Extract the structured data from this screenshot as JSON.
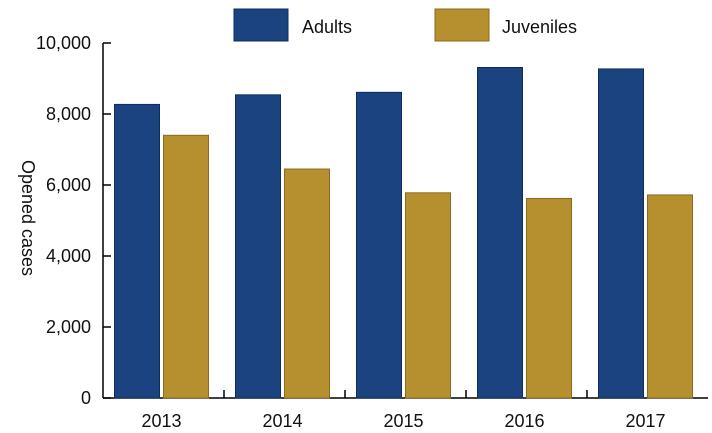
{
  "chart_data": {
    "type": "bar",
    "title": "",
    "xlabel": "",
    "ylabel": "Opened cases",
    "categories": [
      "2013",
      "2014",
      "2015",
      "2016",
      "2017"
    ],
    "series": [
      {
        "name": "Adults",
        "color": "#1b4380",
        "values": [
          8270,
          8540,
          8610,
          9310,
          9270
        ]
      },
      {
        "name": "Juveniles",
        "color": "#b68f2f",
        "values": [
          7400,
          6450,
          5780,
          5620,
          5720
        ]
      }
    ],
    "ylim": [
      0,
      10000
    ],
    "yticks": [
      0,
      2000,
      4000,
      6000,
      8000,
      10000
    ],
    "ytick_labels": [
      "0",
      "2,000",
      "4,000",
      "6,000",
      "8,000",
      "10,000"
    ],
    "grid": false,
    "legend_position": "top"
  }
}
